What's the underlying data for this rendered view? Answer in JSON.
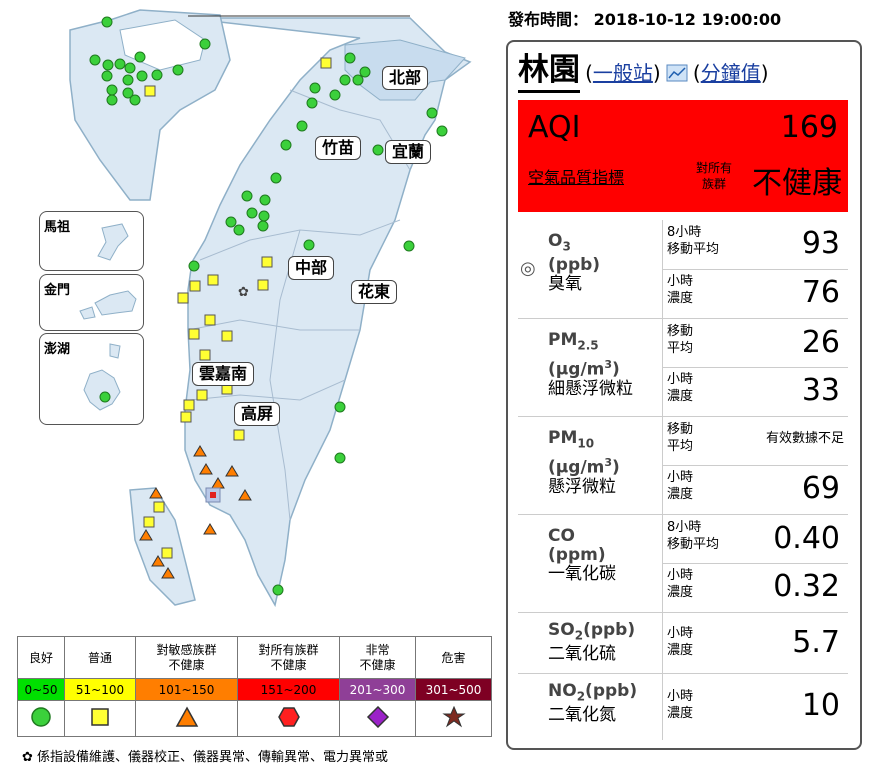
{
  "publish": {
    "label": "發布時間：",
    "time": "2018-10-12 19:00:00"
  },
  "station": {
    "name": "林園",
    "type_link": "一般站",
    "minute_link": "分鐘值",
    "chart_icon": "chart-icon"
  },
  "aqi": {
    "label": "AQI",
    "value": "169",
    "sub_label": "空氣品質指標",
    "target_line1": "對所有",
    "target_line2": "族群",
    "status": "不健康",
    "color": "#ff0000"
  },
  "pollutants": [
    {
      "name": "O",
      "subscript": "3",
      "unit": "(ppb)",
      "cn": "臭氧",
      "selected_icon": "◎",
      "rows": [
        {
          "label1": "8小時",
          "label2": "移動平均",
          "value": "93"
        },
        {
          "label1": "小時",
          "label2": "濃度",
          "value": "76"
        }
      ]
    },
    {
      "name": "PM",
      "subscript": "2.5",
      "unit": "(μg/m",
      "unit_sup": "3",
      "unit_close": ")",
      "cn": "細懸浮微粒",
      "rows": [
        {
          "label1": "移動",
          "label2": "平均",
          "value": "26"
        },
        {
          "label1": "小時",
          "label2": "濃度",
          "value": "33"
        }
      ]
    },
    {
      "name": "PM",
      "subscript": "10",
      "unit": "(μg/m",
      "unit_sup": "3",
      "unit_close": ")",
      "cn": "懸浮微粒",
      "rows": [
        {
          "label1": "移動",
          "label2": "平均",
          "value": "",
          "note": "有效數據不足"
        },
        {
          "label1": "小時",
          "label2": "濃度",
          "value": "69"
        }
      ]
    },
    {
      "name": "CO",
      "unit": "(ppm)",
      "cn": "一氧化碳",
      "rows": [
        {
          "label1": "8小時",
          "label2": "移動平均",
          "value": "0.40"
        },
        {
          "label1": "小時",
          "label2": "濃度",
          "value": "0.32"
        }
      ]
    },
    {
      "name": "SO",
      "subscript": "2",
      "unit": "(ppb)",
      "cn": "二氧化硫",
      "rows": [
        {
          "label1": "小時",
          "label2": "濃度",
          "value": "5.7"
        }
      ]
    },
    {
      "name": "NO",
      "subscript": "2",
      "unit": "(ppb)",
      "cn": "二氧化氮",
      "rows": [
        {
          "label1": "小時",
          "label2": "濃度",
          "value": "10"
        }
      ]
    }
  ],
  "map": {
    "regions": [
      "北部",
      "竹苗",
      "宜蘭",
      "中部",
      "花東",
      "雲嘉南",
      "高屏"
    ],
    "islands": [
      "馬祖",
      "金門",
      "澎湖"
    ],
    "land_color": "#dbe8f3",
    "sea_outline": "#8fb0c8"
  },
  "legend": {
    "categories": [
      {
        "label": "良好",
        "range": "0~50",
        "color": "#00e000",
        "icon": "circle-icon"
      },
      {
        "label": "普通",
        "range": "51~100",
        "color": "#ffff00",
        "icon": "square-icon"
      },
      {
        "label": "對敏感族群\n不健康",
        "range": "101~150",
        "color": "#ff7e00",
        "icon": "triangle-icon"
      },
      {
        "label": "對所有族群\n不健康",
        "range": "151~200",
        "color": "#ff0000",
        "icon": "hexagon-icon"
      },
      {
        "label": "非常\n不健康",
        "range": "201~300",
        "color": "#8f3f97",
        "icon": "diamond-icon"
      },
      {
        "label": "危害",
        "range": "301~500",
        "color": "#7e0023",
        "icon": "star-icon"
      }
    ]
  },
  "footnote": "係指設備維護、儀器校正、儀器異常、傳輸異常、電力異常或"
}
